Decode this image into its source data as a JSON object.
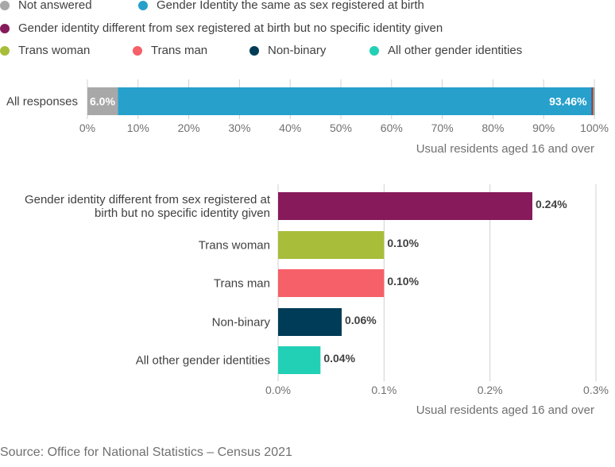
{
  "legend": [
    {
      "label": "Not answered",
      "color": "#a8a8a8"
    },
    {
      "label": "Gender Identity the same as sex registered at birth",
      "color": "#27a0cc"
    },
    {
      "label": "Gender identity different from sex registered at birth but no specific identity given",
      "color": "#871a5b"
    },
    {
      "label": "Trans woman",
      "color": "#a8bd3a"
    },
    {
      "label": "Trans man",
      "color": "#f66068"
    },
    {
      "label": "Non-binary",
      "color": "#003c57"
    },
    {
      "label": "All other gender identities",
      "color": "#22d0b6"
    }
  ],
  "source": "Source: Office for National Statistics – Census 2021",
  "chart_data": [
    {
      "type": "bar",
      "orientation": "horizontal",
      "stacked": true,
      "categories": [
        "All responses"
      ],
      "series": [
        {
          "name": "Not answered",
          "values": [
            6.0
          ],
          "color": "#a8a8a8",
          "label": "6.0%"
        },
        {
          "name": "Gender Identity the same as sex registered at birth",
          "values": [
            93.46
          ],
          "color": "#27a0cc",
          "label": "93.46%"
        },
        {
          "name": "Gender identity different from sex registered at birth but no specific identity given",
          "values": [
            0.24
          ],
          "color": "#871a5b"
        },
        {
          "name": "Trans woman",
          "values": [
            0.1
          ],
          "color": "#a8bd3a"
        },
        {
          "name": "Trans man",
          "values": [
            0.1
          ],
          "color": "#f66068"
        },
        {
          "name": "Non-binary",
          "values": [
            0.06
          ],
          "color": "#003c57"
        },
        {
          "name": "All other gender identities",
          "values": [
            0.04
          ],
          "color": "#22d0b6"
        }
      ],
      "xlim": [
        0,
        100
      ],
      "ticks": [
        0,
        10,
        20,
        30,
        40,
        50,
        60,
        70,
        80,
        90,
        100
      ],
      "tick_labels": [
        "0%",
        "10%",
        "20%",
        "30%",
        "40%",
        "50%",
        "60%",
        "70%",
        "80%",
        "90%",
        "100%"
      ],
      "xlabel": "Usual residents aged 16 and over",
      "grid": true
    },
    {
      "type": "bar",
      "orientation": "horizontal",
      "categories": [
        [
          "Gender identity different from sex registered at",
          "birth but no specific identity given"
        ],
        [
          "Trans woman"
        ],
        [
          "Trans man"
        ],
        [
          "Non-binary"
        ],
        [
          "All other gender identities"
        ]
      ],
      "values": [
        0.24,
        0.1,
        0.1,
        0.06,
        0.04
      ],
      "value_labels": [
        "0.24%",
        "0.10%",
        "0.10%",
        "0.06%",
        "0.04%"
      ],
      "colors": [
        "#871a5b",
        "#a8bd3a",
        "#f66068",
        "#003c57",
        "#22d0b6"
      ],
      "xlim": [
        0,
        0.3
      ],
      "ticks": [
        0,
        0.1,
        0.2,
        0.3
      ],
      "tick_labels": [
        "0.0%",
        "0.1%",
        "0.2%",
        "0.3%"
      ],
      "xlabel": "Usual residents aged 16 and over",
      "grid": true
    }
  ]
}
